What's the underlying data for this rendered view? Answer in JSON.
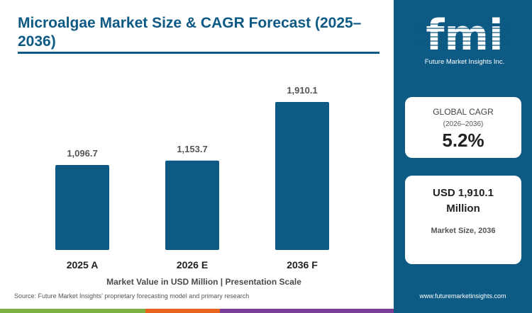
{
  "title": "Microalgae Market Size & CAGR Forecast (2025–2036)",
  "chart_data": {
    "type": "bar",
    "categories": [
      "2025 A",
      "2026 E",
      "2036 F"
    ],
    "values": [
      1096.7,
      1153.7,
      1910.1
    ],
    "value_labels": [
      "1,096.7",
      "1,153.7",
      "1,910.1"
    ],
    "xlabel": "Market Value in USD Million | Presentation Scale",
    "ylabel": "",
    "ylim": [
      0,
      1910.1
    ],
    "grid": false,
    "bar_color": "#0d5a85"
  },
  "source": "Source: Future Market Insights’ proprietary forecasting model and primary research",
  "logo": {
    "letters": "fmi",
    "tagline": "Future Market Insights Inc."
  },
  "cagr_card": {
    "label": "GLOBAL CAGR",
    "period": "(2026–2036)",
    "value": "5.2%"
  },
  "size_card": {
    "value_line1": "USD 1,910.1",
    "value_line2": "Million",
    "label": "Market Size, 2036"
  },
  "website": "www.futuremarketinsights.com",
  "colors": {
    "brand": "#0d5a85",
    "stripe": [
      "#7cb342",
      "#e8641e",
      "#7b3f98",
      "#0d5a85"
    ]
  }
}
